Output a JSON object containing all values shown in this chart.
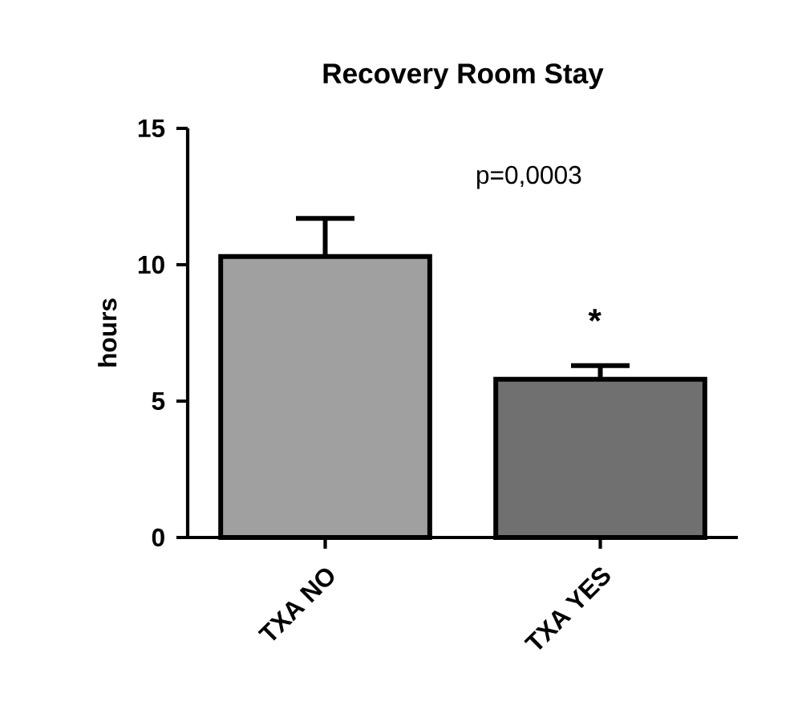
{
  "chart_data": {
    "type": "bar",
    "title": "Recovery Room Stay",
    "ylabel": "hours",
    "categories": [
      "TXA NO",
      "TXA YES"
    ],
    "values": [
      10.3,
      5.8
    ],
    "errors": [
      1.4,
      0.5
    ],
    "colors": [
      "#a0a0a0",
      "#707070"
    ],
    "ylim": [
      0,
      15
    ],
    "yticks": [
      0,
      5,
      10,
      15
    ],
    "grid": false,
    "annotations": [
      "p=0,0003",
      "*"
    ]
  }
}
